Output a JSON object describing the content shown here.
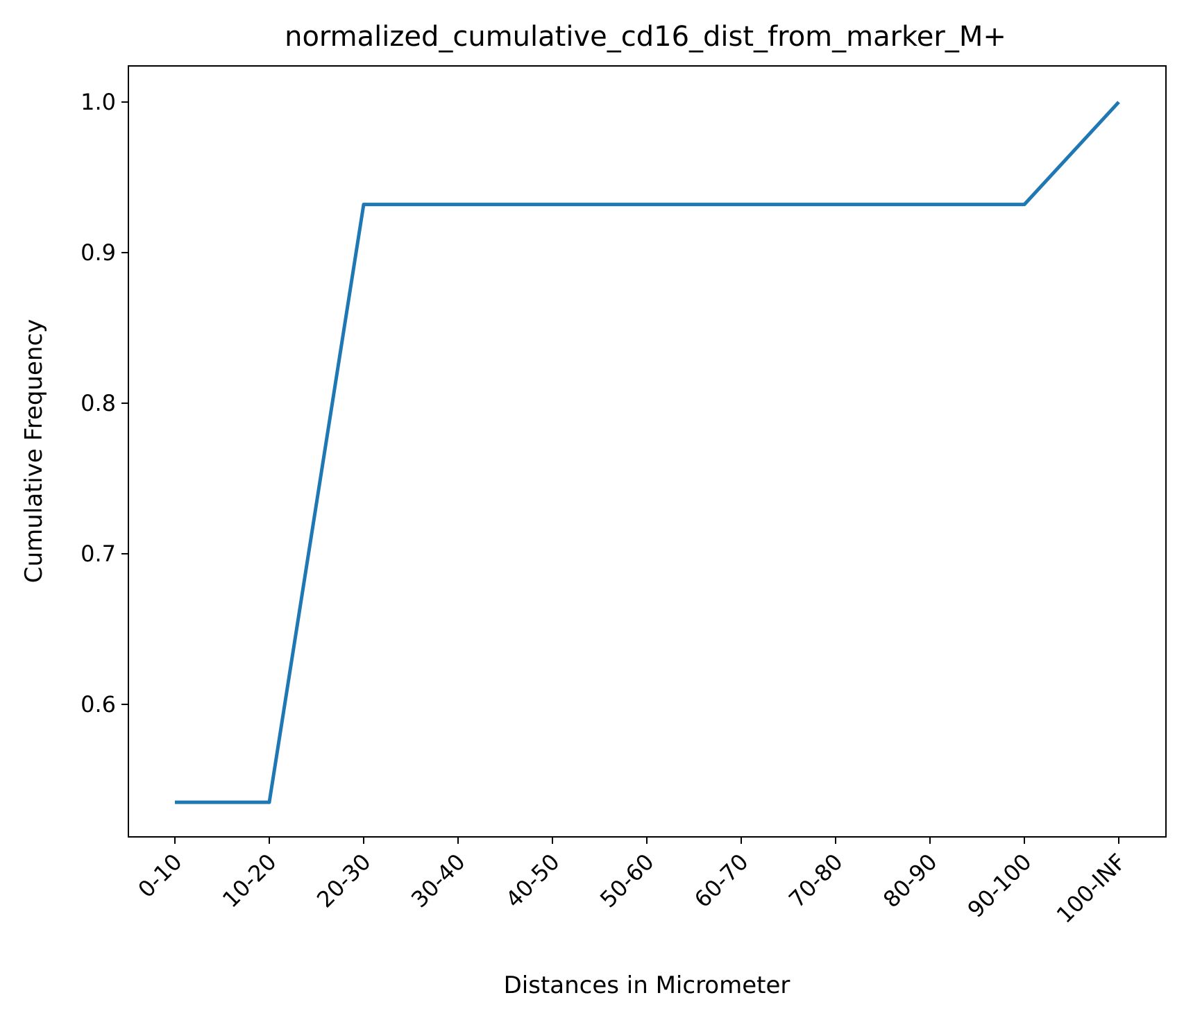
{
  "chart_data": {
    "type": "line",
    "title": "normalized_cumulative_cd16_dist_from_marker_M+",
    "xlabel": "Distances in Micrometer",
    "ylabel": "Cumulative Frequency",
    "categories": [
      "0-10",
      "10-20",
      "20-30",
      "30-40",
      "40-50",
      "50-60",
      "60-70",
      "70-80",
      "80-90",
      "90-100",
      "100-INF"
    ],
    "series": [
      {
        "values": [
          0.535,
          0.535,
          0.932,
          0.932,
          0.932,
          0.932,
          0.932,
          0.932,
          0.932,
          0.932,
          1.0
        ]
      }
    ],
    "yticks": [
      "0.6",
      "0.7",
      "0.8",
      "0.9",
      "1.0"
    ],
    "ylim": [
      0.512,
      1.024
    ],
    "grid": false,
    "legend": "none",
    "colors": {
      "line": "#1f77b4",
      "axis": "#000000"
    }
  }
}
